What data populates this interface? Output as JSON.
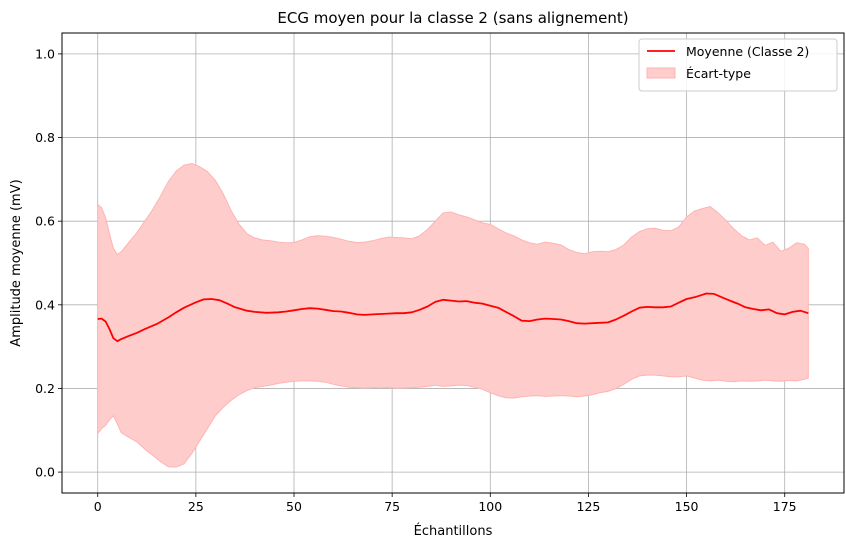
{
  "chart_data": {
    "type": "line",
    "title": "ECG moyen pour la classe 2 (sans alignement)",
    "xlabel": "Échantillons",
    "ylabel": "Amplitude moyenne (mV)",
    "xlim": [
      -9.1,
      190.1
    ],
    "ylim": [
      -0.05,
      1.05
    ],
    "xticks": [
      0,
      25,
      50,
      75,
      100,
      125,
      150,
      175
    ],
    "yticks": [
      0.0,
      0.2,
      0.4,
      0.6,
      0.8,
      1.0
    ],
    "ytick_labels": [
      "0.0",
      "0.2",
      "0.4",
      "0.6",
      "0.8",
      "1.0"
    ],
    "grid": true,
    "legend_position": "top-right",
    "line_color": "#ff0000",
    "band_color": "#ffcccc",
    "band_edge_color": "#ffb3b3",
    "series": [
      {
        "name": "Moyenne (Classe 2)",
        "kind": "line",
        "x": [
          0,
          1,
          2,
          3,
          4,
          5,
          6,
          7,
          8,
          10,
          12,
          15,
          18,
          20,
          22,
          25,
          27,
          29,
          31,
          33,
          35,
          38,
          40,
          43,
          46,
          48,
          50,
          52,
          54,
          56,
          58,
          60,
          62,
          64,
          66,
          68,
          70,
          72,
          74,
          76,
          78,
          80,
          82,
          84,
          86,
          88,
          90,
          92,
          94,
          96,
          98,
          100,
          102,
          104,
          106,
          108,
          110,
          112,
          114,
          116,
          118,
          120,
          122,
          124,
          126,
          128,
          130,
          132,
          134,
          136,
          138,
          140,
          142,
          144,
          146,
          148,
          150,
          152,
          154,
          155,
          157,
          159,
          161,
          163,
          165,
          167,
          169,
          171,
          173,
          175,
          177,
          179,
          181
        ],
        "y": [
          0.366,
          0.367,
          0.36,
          0.342,
          0.32,
          0.313,
          0.318,
          0.322,
          0.326,
          0.333,
          0.342,
          0.354,
          0.37,
          0.382,
          0.393,
          0.406,
          0.413,
          0.414,
          0.411,
          0.403,
          0.394,
          0.386,
          0.383,
          0.381,
          0.382,
          0.384,
          0.387,
          0.39,
          0.392,
          0.391,
          0.388,
          0.385,
          0.384,
          0.381,
          0.377,
          0.376,
          0.377,
          0.378,
          0.379,
          0.38,
          0.38,
          0.382,
          0.388,
          0.396,
          0.407,
          0.412,
          0.41,
          0.408,
          0.409,
          0.405,
          0.403,
          0.398,
          0.393,
          0.383,
          0.373,
          0.362,
          0.361,
          0.365,
          0.367,
          0.366,
          0.365,
          0.361,
          0.356,
          0.355,
          0.356,
          0.357,
          0.358,
          0.365,
          0.374,
          0.384,
          0.393,
          0.395,
          0.394,
          0.394,
          0.396,
          0.405,
          0.414,
          0.418,
          0.424,
          0.427,
          0.426,
          0.418,
          0.41,
          0.403,
          0.394,
          0.39,
          0.387,
          0.389,
          0.38,
          0.377,
          0.383,
          0.386,
          0.38
        ]
      },
      {
        "name": "Écart-type",
        "kind": "band",
        "x": [
          0,
          1,
          2,
          3,
          4,
          5,
          6,
          8,
          10,
          12,
          14,
          16,
          18,
          20,
          22,
          24,
          26,
          28,
          30,
          32,
          34,
          36,
          38,
          40,
          42,
          44,
          46,
          48,
          50,
          52,
          54,
          56,
          58,
          60,
          62,
          64,
          66,
          68,
          70,
          72,
          74,
          76,
          78,
          80,
          82,
          84,
          86,
          88,
          90,
          92,
          94,
          96,
          98,
          100,
          102,
          104,
          106,
          108,
          110,
          112,
          114,
          116,
          118,
          120,
          122,
          124,
          126,
          128,
          130,
          132,
          134,
          136,
          138,
          140,
          142,
          144,
          146,
          148,
          150,
          152,
          154,
          156,
          158,
          160,
          162,
          164,
          166,
          168,
          170,
          172,
          174,
          176,
          178,
          180,
          181
        ],
        "upper": [
          0.64,
          0.632,
          0.608,
          0.57,
          0.535,
          0.52,
          0.527,
          0.55,
          0.573,
          0.6,
          0.628,
          0.66,
          0.695,
          0.72,
          0.734,
          0.738,
          0.73,
          0.718,
          0.697,
          0.665,
          0.625,
          0.593,
          0.57,
          0.56,
          0.555,
          0.553,
          0.55,
          0.548,
          0.549,
          0.555,
          0.563,
          0.565,
          0.564,
          0.561,
          0.557,
          0.552,
          0.549,
          0.55,
          0.553,
          0.558,
          0.562,
          0.561,
          0.56,
          0.558,
          0.565,
          0.58,
          0.6,
          0.62,
          0.622,
          0.615,
          0.61,
          0.603,
          0.596,
          0.592,
          0.582,
          0.572,
          0.565,
          0.555,
          0.548,
          0.545,
          0.55,
          0.547,
          0.543,
          0.532,
          0.525,
          0.522,
          0.527,
          0.528,
          0.527,
          0.532,
          0.543,
          0.562,
          0.575,
          0.582,
          0.583,
          0.578,
          0.577,
          0.586,
          0.61,
          0.624,
          0.63,
          0.635,
          0.62,
          0.602,
          0.582,
          0.565,
          0.555,
          0.56,
          0.542,
          0.55,
          0.528,
          0.535,
          0.548,
          0.545,
          0.535
        ],
        "lower": [
          0.092,
          0.104,
          0.112,
          0.125,
          0.135,
          0.115,
          0.094,
          0.083,
          0.072,
          0.055,
          0.04,
          0.025,
          0.013,
          0.012,
          0.02,
          0.045,
          0.075,
          0.105,
          0.135,
          0.155,
          0.172,
          0.185,
          0.195,
          0.202,
          0.205,
          0.208,
          0.212,
          0.215,
          0.217,
          0.218,
          0.218,
          0.217,
          0.215,
          0.21,
          0.206,
          0.203,
          0.202,
          0.201,
          0.202,
          0.203,
          0.202,
          0.201,
          0.201,
          0.202,
          0.203,
          0.205,
          0.208,
          0.205,
          0.206,
          0.208,
          0.207,
          0.203,
          0.198,
          0.19,
          0.183,
          0.178,
          0.177,
          0.18,
          0.182,
          0.183,
          0.181,
          0.182,
          0.183,
          0.182,
          0.18,
          0.182,
          0.185,
          0.19,
          0.193,
          0.2,
          0.21,
          0.222,
          0.23,
          0.232,
          0.232,
          0.23,
          0.228,
          0.228,
          0.23,
          0.225,
          0.22,
          0.218,
          0.22,
          0.217,
          0.216,
          0.218,
          0.217,
          0.218,
          0.22,
          0.218,
          0.217,
          0.219,
          0.218,
          0.222,
          0.225
        ]
      }
    ]
  }
}
